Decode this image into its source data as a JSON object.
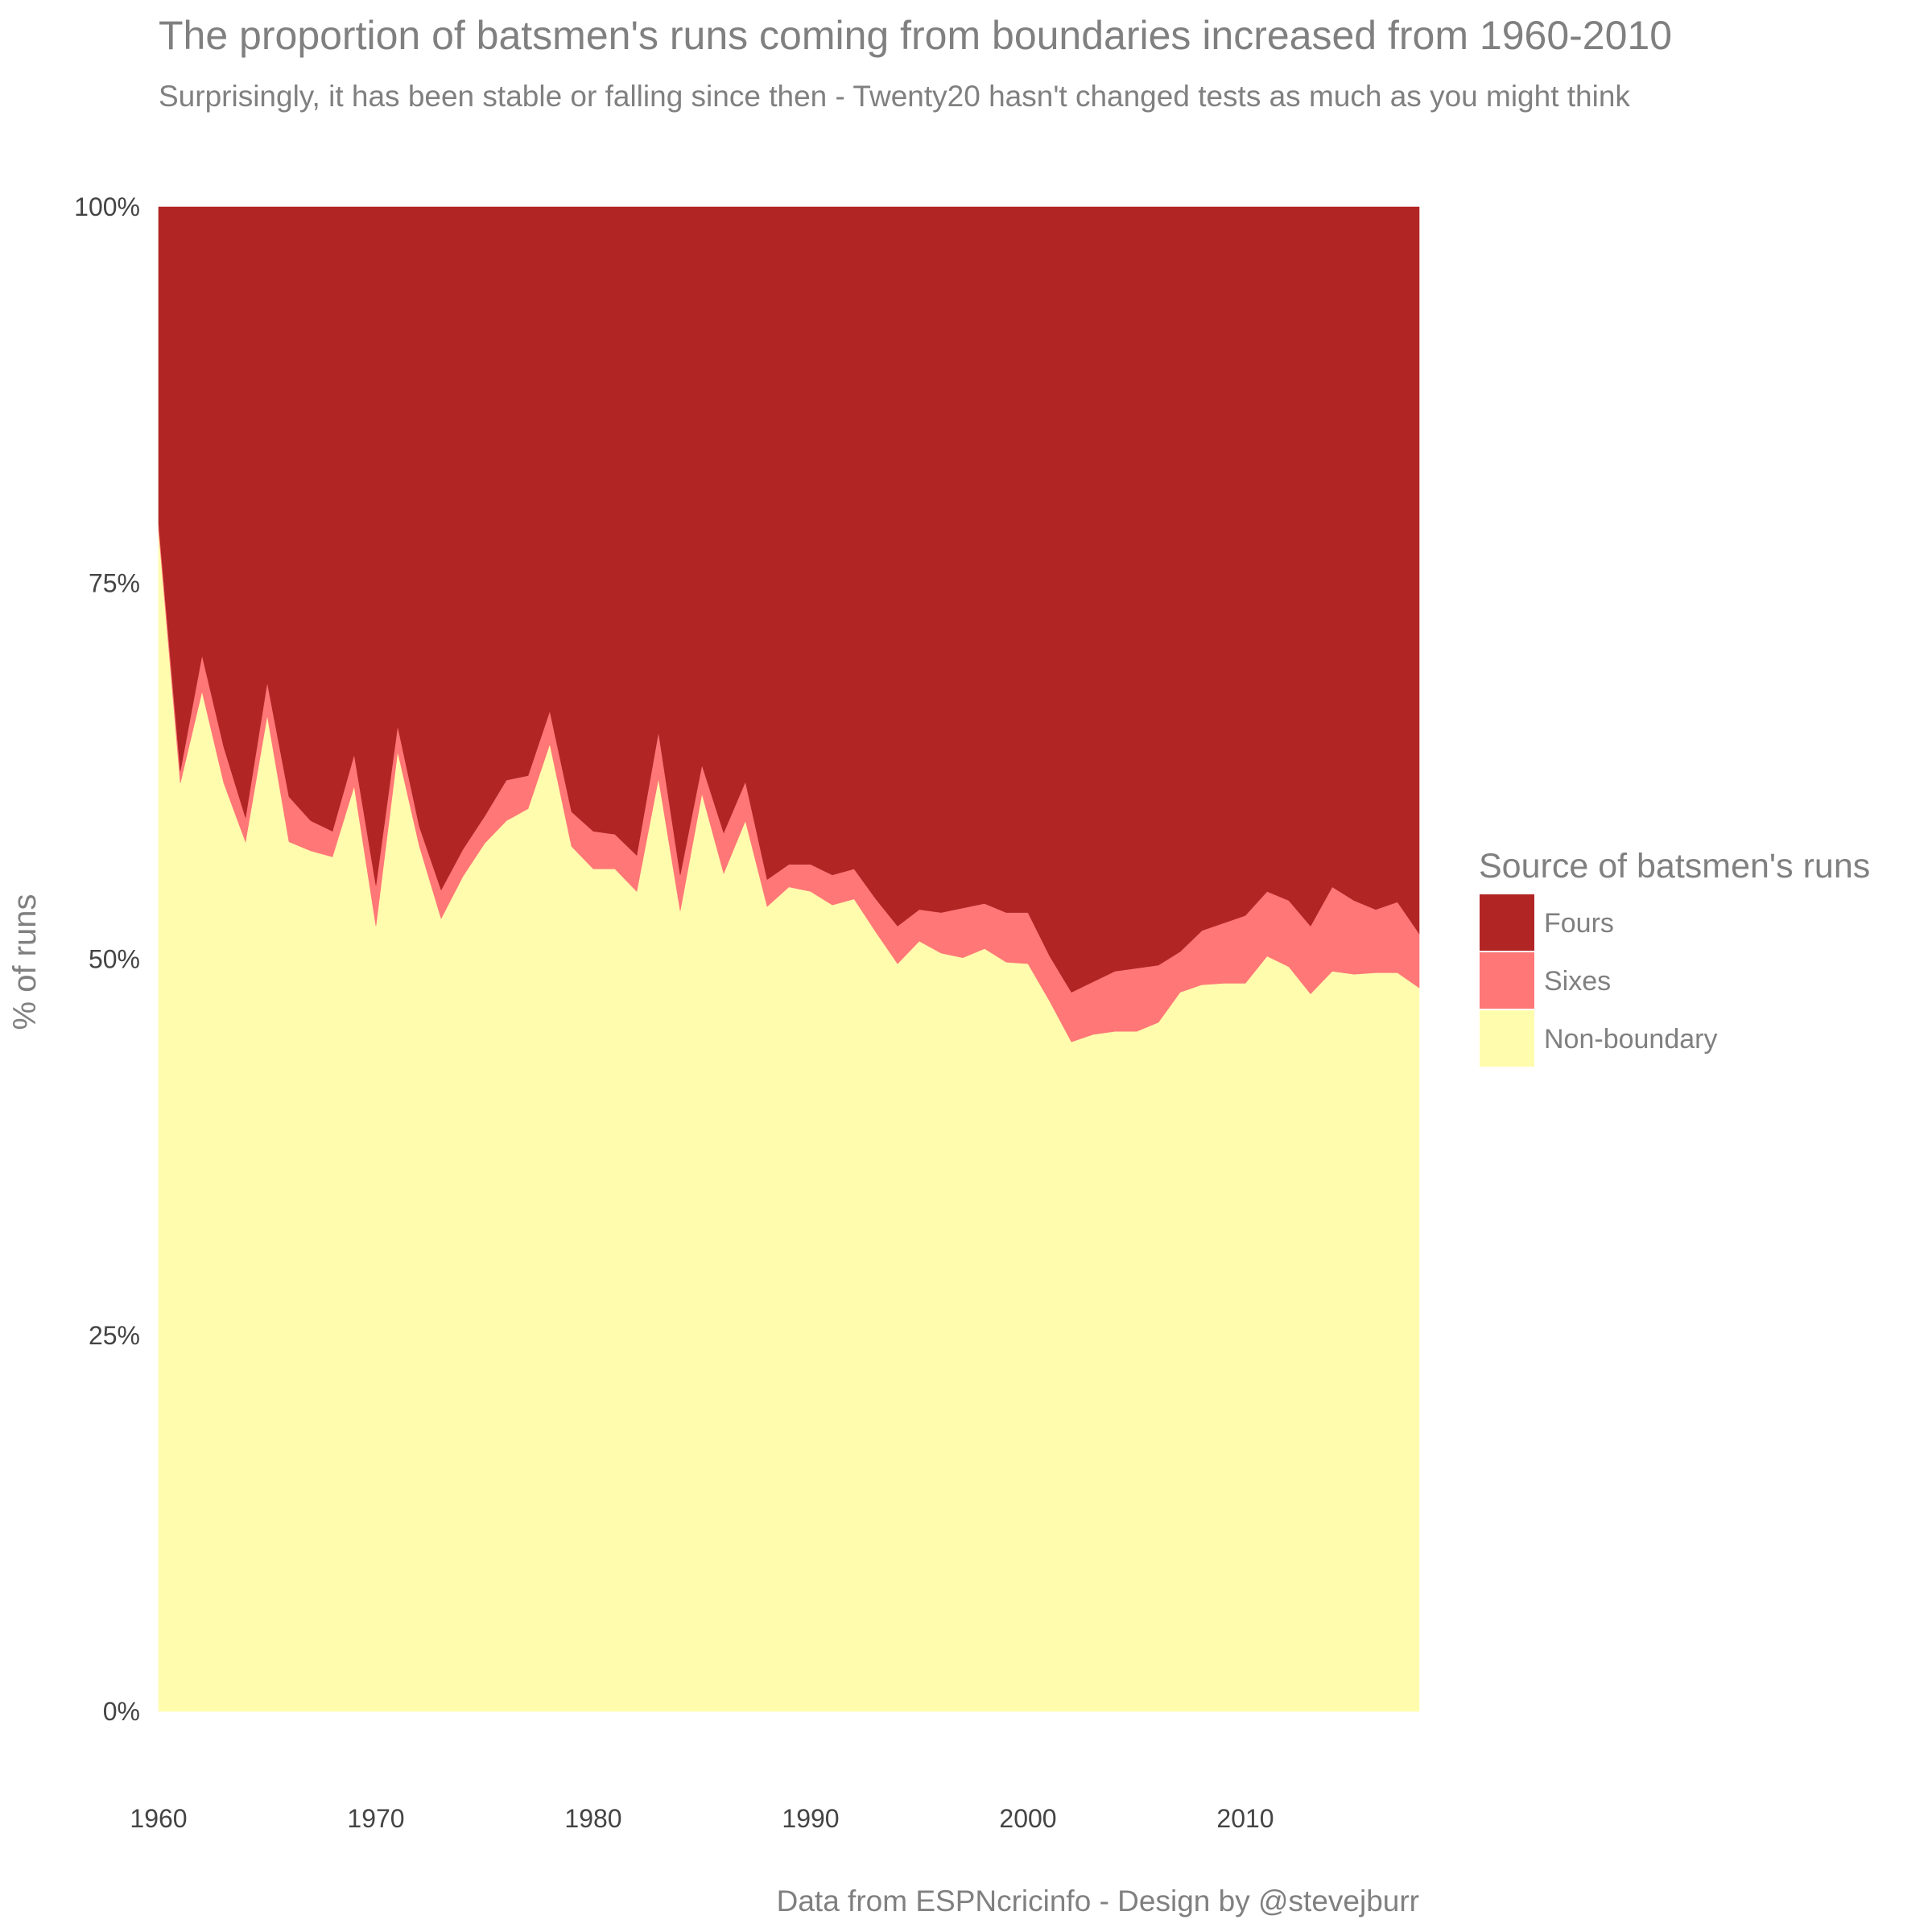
{
  "chart_data": {
    "type": "area",
    "stacked": true,
    "normalized": true,
    "title": "The proportion of batsmen's runs coming from boundaries increased from 1960-2010",
    "subtitle": "Surprisingly, it has been stable or falling since then - Twenty20 hasn't changed tests as much as you might think",
    "caption": "Data from ESPNcricinfo - Design by @stevejburr",
    "xlabel": "",
    "ylabel": "% of runs",
    "xlim": [
      1960,
      2018
    ],
    "ylim": [
      0,
      1
    ],
    "x_ticks": [
      1960,
      1970,
      1980,
      1990,
      2000,
      2010
    ],
    "x_tick_labels": [
      "1960",
      "1970",
      "1980",
      "1990",
      "2000",
      "2010"
    ],
    "y_ticks": [
      0,
      0.25,
      0.5,
      0.75,
      1
    ],
    "y_tick_labels": [
      "0%",
      "25%",
      "50%",
      "75%",
      "100%"
    ],
    "grid": false,
    "legend": {
      "title": "Source of batsmen's runs",
      "position": "right",
      "entries": [
        "Fours",
        "Sixes",
        "Non-boundary"
      ]
    },
    "colors": {
      "Fours": "#B22525",
      "Sixes": "#FF7777",
      "Non-boundary": "#FFFCAE"
    },
    "x": [
      1960,
      1961,
      1962,
      1963,
      1964,
      1965,
      1966,
      1967,
      1968,
      1969,
      1970,
      1971,
      1972,
      1973,
      1974,
      1975,
      1976,
      1977,
      1978,
      1979,
      1980,
      1981,
      1982,
      1983,
      1984,
      1985,
      1986,
      1987,
      1988,
      1989,
      1990,
      1991,
      1992,
      1993,
      1994,
      1995,
      1996,
      1997,
      1998,
      1999,
      2000,
      2001,
      2002,
      2003,
      2004,
      2005,
      2006,
      2007,
      2008,
      2009,
      2010,
      2011,
      2012,
      2013,
      2014,
      2015,
      2016,
      2017,
      2018
    ],
    "series": [
      {
        "name": "Non-boundary",
        "values": [
          0.785,
          0.617,
          0.678,
          0.617,
          0.578,
          0.662,
          0.578,
          0.572,
          0.568,
          0.615,
          0.522,
          0.638,
          0.575,
          0.527,
          0.555,
          0.577,
          0.592,
          0.6,
          0.643,
          0.575,
          0.56,
          0.56,
          0.545,
          0.62,
          0.532,
          0.61,
          0.557,
          0.592,
          0.535,
          0.548,
          0.545,
          0.536,
          0.54,
          0.518,
          0.497,
          0.512,
          0.504,
          0.501,
          0.507,
          0.498,
          0.497,
          0.472,
          0.445,
          0.45,
          0.452,
          0.452,
          0.458,
          0.478,
          0.483,
          0.484,
          0.484,
          0.502,
          0.495,
          0.477,
          0.492,
          0.49,
          0.491,
          0.491,
          0.481
        ]
      },
      {
        "name": "Sixes",
        "values": [
          0.005,
          0.008,
          0.024,
          0.024,
          0.016,
          0.022,
          0.03,
          0.02,
          0.017,
          0.021,
          0.027,
          0.017,
          0.013,
          0.019,
          0.018,
          0.018,
          0.027,
          0.022,
          0.022,
          0.023,
          0.025,
          0.023,
          0.024,
          0.031,
          0.024,
          0.019,
          0.027,
          0.026,
          0.018,
          0.015,
          0.018,
          0.02,
          0.02,
          0.022,
          0.025,
          0.021,
          0.027,
          0.033,
          0.03,
          0.033,
          0.034,
          0.03,
          0.033,
          0.035,
          0.04,
          0.042,
          0.038,
          0.027,
          0.036,
          0.04,
          0.045,
          0.043,
          0.044,
          0.045,
          0.056,
          0.049,
          0.042,
          0.047,
          0.036
        ]
      },
      {
        "name": "Fours",
        "values": [
          0.21,
          0.375,
          0.298,
          0.359,
          0.406,
          0.316,
          0.392,
          0.408,
          0.415,
          0.364,
          0.451,
          0.345,
          0.412,
          0.454,
          0.427,
          0.405,
          0.381,
          0.378,
          0.335,
          0.402,
          0.415,
          0.417,
          0.431,
          0.349,
          0.444,
          0.371,
          0.416,
          0.382,
          0.447,
          0.437,
          0.437,
          0.444,
          0.44,
          0.46,
          0.478,
          0.467,
          0.469,
          0.466,
          0.463,
          0.469,
          0.469,
          0.498,
          0.522,
          0.515,
          0.508,
          0.506,
          0.504,
          0.495,
          0.481,
          0.476,
          0.471,
          0.455,
          0.461,
          0.478,
          0.452,
          0.461,
          0.467,
          0.462,
          0.483
        ]
      }
    ]
  }
}
